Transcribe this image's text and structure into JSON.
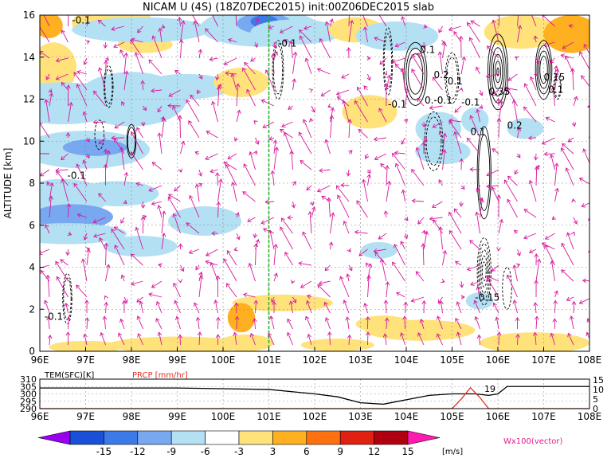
{
  "title": "NICAM U (4S) (18Z07DEC2015) init:00Z06DEC2015 slab",
  "main_chart": {
    "type": "heatmap",
    "ylabel": "ALTITUDE [km]",
    "xticks": [
      "96E",
      "97E",
      "98E",
      "99E",
      "100E",
      "101E",
      "102E",
      "103E",
      "104E",
      "105E",
      "106E",
      "107E",
      "108E"
    ],
    "yticks": [
      "0",
      "2",
      "4",
      "6",
      "8",
      "10",
      "12",
      "14",
      "16"
    ],
    "xlim": [
      96,
      108
    ],
    "ylim": [
      0,
      16
    ],
    "vertical_marker_lon": 101,
    "contour_labels": [
      {
        "text": "-0.1",
        "x": 96.7,
        "y": 15.6
      },
      {
        "text": "-0.1",
        "x": 96.6,
        "y": 8.2
      },
      {
        "text": "-0.1",
        "x": 96.1,
        "y": 1.5
      },
      {
        "text": "-0.1",
        "x": 101.2,
        "y": 14.5
      },
      {
        "text": "0.1",
        "x": 104.3,
        "y": 14.2
      },
      {
        "text": "0.2",
        "x": 104.6,
        "y": 13.0
      },
      {
        "text": "0.1",
        "x": 104.9,
        "y": 12.7
      },
      {
        "text": "-0.1",
        "x": 103.6,
        "y": 11.6
      },
      {
        "text": "0.-0.1",
        "x": 104.4,
        "y": 11.8
      },
      {
        "text": "0.35",
        "x": 105.8,
        "y": 12.2
      },
      {
        "text": "0.15",
        "x": 107.0,
        "y": 12.9
      },
      {
        "text": "0.1",
        "x": 107.1,
        "y": 12.3
      },
      {
        "text": "-0.1",
        "x": 105.2,
        "y": 11.7
      },
      {
        "text": "0.2",
        "x": 106.2,
        "y": 10.6
      },
      {
        "text": "0.1",
        "x": 105.4,
        "y": 10.3
      },
      {
        "text": "-0.15",
        "x": 105.5,
        "y": 2.4
      }
    ]
  },
  "sub_chart": {
    "type": "line",
    "left_label": "TEM(SFC)[K]",
    "right_label": "PRCP [mm/hr]",
    "yticks_left": [
      "310",
      "305",
      "300",
      "295",
      "290"
    ],
    "yticks_right": [
      "15",
      "10",
      "5",
      "0"
    ],
    "annotation": "19",
    "series": [
      {
        "name": "TEM(SFC)[K]",
        "color": "#000000",
        "x": [
          96,
          99,
          100,
          101,
          102,
          102.5,
          103,
          103.5,
          104,
          104.5,
          105,
          105.5,
          105.8,
          106,
          106.2,
          108
        ],
        "y": [
          304,
          304,
          303.5,
          303,
          300,
          298,
          294,
          293,
          296,
          299,
          300,
          300,
          299,
          300,
          305,
          305
        ]
      },
      {
        "name": "PRCP [mm/hr]",
        "color": "#e03020",
        "x": [
          96,
          105,
          105.2,
          105.4,
          105.6,
          105.8,
          108
        ],
        "y": [
          0,
          0,
          5,
          11,
          6,
          0,
          0
        ]
      }
    ]
  },
  "colorbar": {
    "values": [
      "-15",
      "-12",
      "-9",
      "-6",
      "-3",
      "3",
      "6",
      "9",
      "12",
      "15"
    ],
    "colors": [
      "#9a00f0",
      "#1a4fd8",
      "#3c7ae8",
      "#78a8f0",
      "#b4e0f4",
      "#ffffff",
      "#ffe27a",
      "#ffb020",
      "#ff7010",
      "#e02010",
      "#b00010",
      "#ff1ab0"
    ],
    "unit": "[m/s]"
  },
  "vector_label": "Wx100(vector)"
}
